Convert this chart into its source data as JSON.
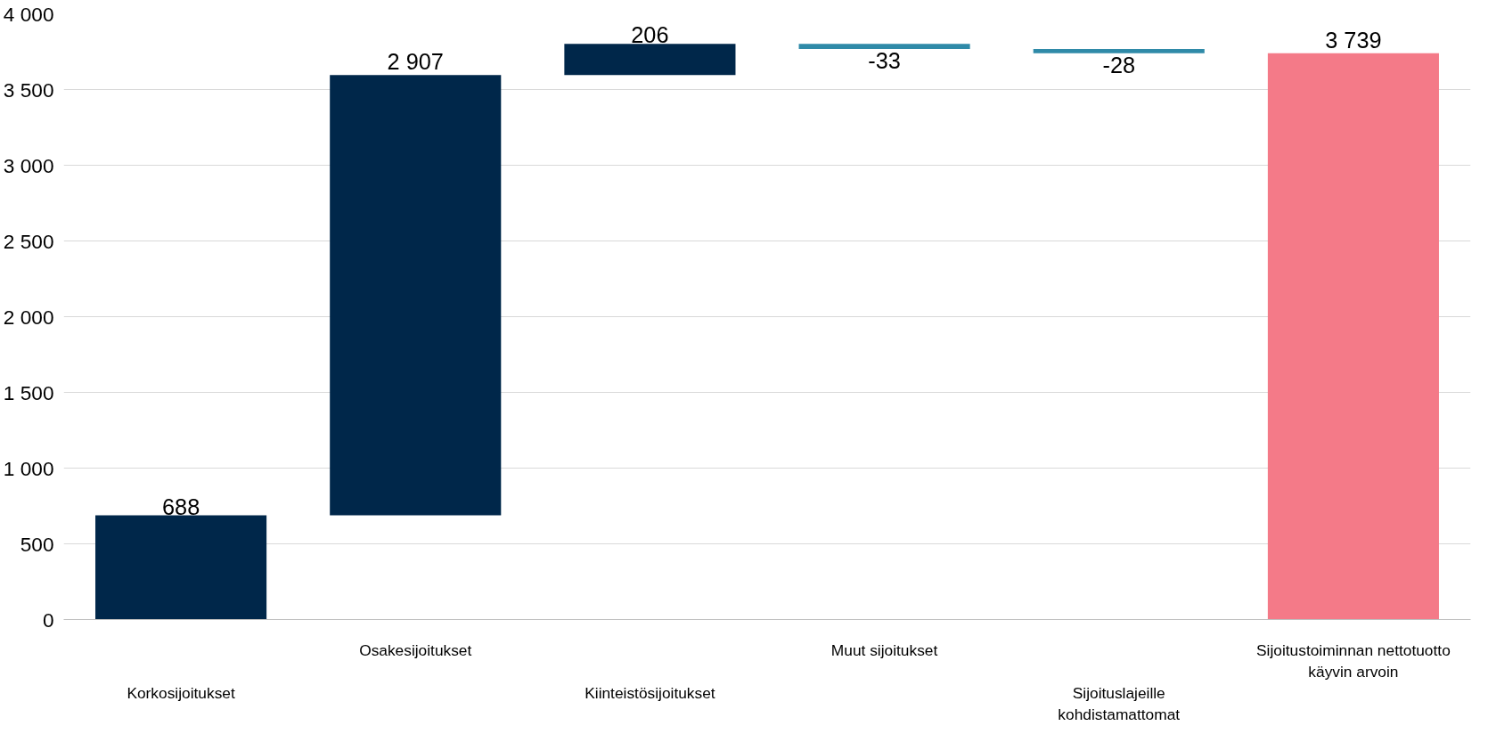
{
  "chart_data": {
    "type": "bar",
    "categories": [
      "Korkosijoitukset",
      "Osakesijoitukset",
      "Kiinteistösijoitukset",
      "Muut sijoitukset",
      "Sijoituslajeille kohdistamattomat",
      "Sijoitustoiminnan nettotuotto käyvin arvoin"
    ],
    "values": [
      688,
      2907,
      206,
      -33,
      -28,
      3739
    ],
    "base": [
      0,
      688,
      3595,
      3801,
      3768,
      0
    ],
    "colors": [
      "#00274a",
      "#00274a",
      "#00274a",
      "#2f8aa8",
      "#2f8aa8",
      "#f47a88"
    ],
    "value_labels": [
      "688",
      "2 907",
      "206",
      "-33",
      "-28",
      "3 739"
    ],
    "ylim": [
      0,
      4000
    ],
    "yticks": [
      0,
      {
        "value": 500,
        "label": "500"
      },
      {
        "value": 1000,
        "label": "1 000"
      },
      {
        "value": 1500,
        "label": "1 500"
      },
      {
        "value": 2000,
        "label": "2 000"
      },
      {
        "value": 2500,
        "label": "2 500"
      },
      {
        "value": 3000,
        "label": "3 000"
      },
      {
        "value": 3500,
        "label": "3 500"
      },
      {
        "value": 4000,
        "label": "4 000"
      }
    ],
    "grid": "y"
  }
}
